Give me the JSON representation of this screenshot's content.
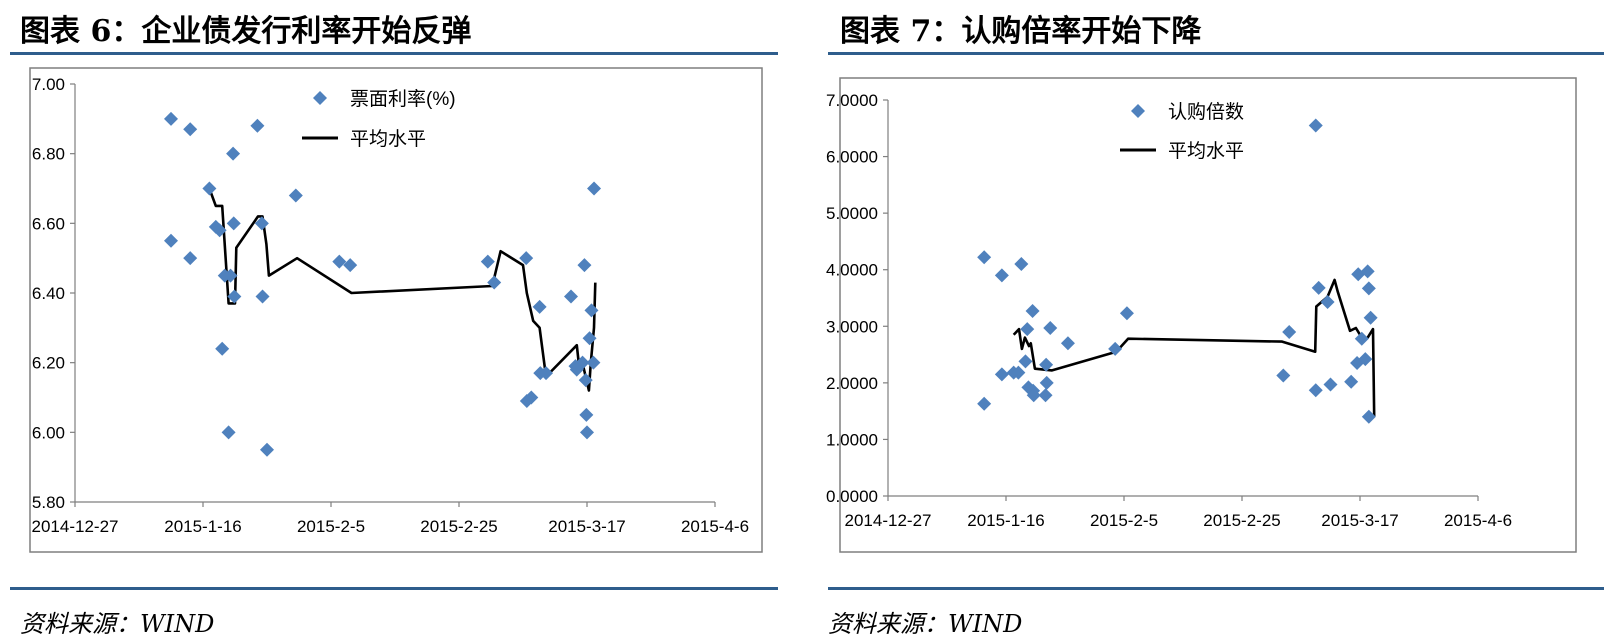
{
  "charts": [
    {
      "figure_label": "图表 6：",
      "figure_title": "企业债发行利率开始反弹",
      "source": "资料来源：WIND",
      "chart_data": {
        "type": "scatter",
        "xlabel": "",
        "ylabel": "",
        "x_ticks": [
          "2014-12-27",
          "2015-1-16",
          "2015-2-5",
          "2015-2-25",
          "2015-3-17",
          "2015-4-6"
        ],
        "x_tick_days": [
          0,
          20,
          40,
          60,
          80,
          100
        ],
        "y_ticks": [
          "5.80",
          "6.00",
          "6.20",
          "6.40",
          "6.60",
          "6.80",
          "7.00"
        ],
        "ylim": [
          5.8,
          7.0
        ],
        "legend_position": "top-center",
        "grid": false,
        "series": [
          {
            "name": "票面利率(%)",
            "kind": "scatter",
            "color": "#4f81bd",
            "points": [
              [
                15,
                6.9
              ],
              [
                15,
                6.55
              ],
              [
                18,
                6.87
              ],
              [
                18,
                6.5
              ],
              [
                21,
                6.7
              ],
              [
                22,
                6.59
              ],
              [
                22.6,
                6.58
              ],
              [
                23,
                6.24
              ],
              [
                23.4,
                6.45
              ],
              [
                24,
                6.0
              ],
              [
                24.3,
                6.45
              ],
              [
                24.7,
                6.8
              ],
              [
                24.8,
                6.6
              ],
              [
                24.9,
                6.39
              ],
              [
                28.5,
                6.88
              ],
              [
                29.2,
                6.6
              ],
              [
                29.3,
                6.39
              ],
              [
                30,
                5.95
              ],
              [
                34.5,
                6.68
              ],
              [
                41.3,
                6.49
              ],
              [
                43,
                6.48
              ],
              [
                64.5,
                6.49
              ],
              [
                65.5,
                6.43
              ],
              [
                70.5,
                6.5
              ],
              [
                70.6,
                6.09
              ],
              [
                71.3,
                6.1
              ],
              [
                72.6,
                6.36
              ],
              [
                72.7,
                6.17
              ],
              [
                73.6,
                6.17
              ],
              [
                77.5,
                6.39
              ],
              [
                78.2,
                6.19
              ],
              [
                78.4,
                6.18
              ],
              [
                79.3,
                6.2
              ],
              [
                79.6,
                6.48
              ],
              [
                79.8,
                6.15
              ],
              [
                79.9,
                6.05
              ],
              [
                80,
                6.0
              ],
              [
                80.4,
                6.27
              ],
              [
                80.7,
                6.35
              ],
              [
                81,
                6.2
              ],
              [
                81.1,
                6.7
              ]
            ]
          },
          {
            "name": "平均水平",
            "kind": "line",
            "color": "#000000",
            "points": [
              [
                21,
                6.7
              ],
              [
                22,
                6.65
              ],
              [
                23,
                6.65
              ],
              [
                24,
                6.37
              ],
              [
                25,
                6.37
              ],
              [
                25.2,
                6.53
              ],
              [
                28.6,
                6.62
              ],
              [
                29.3,
                6.62
              ],
              [
                29.9,
                6.54
              ],
              [
                30.3,
                6.45
              ],
              [
                34.7,
                6.5
              ],
              [
                43.2,
                6.4
              ],
              [
                65.2,
                6.42
              ],
              [
                66.5,
                6.52
              ],
              [
                70,
                6.48
              ],
              [
                70.6,
                6.4
              ],
              [
                71.6,
                6.32
              ],
              [
                72.6,
                6.3
              ],
              [
                73.6,
                6.16
              ],
              [
                78.4,
                6.25
              ],
              [
                78.7,
                6.2
              ],
              [
                79.4,
                6.19
              ],
              [
                80.3,
                6.12
              ],
              [
                80.6,
                6.2
              ],
              [
                81.1,
                6.3
              ],
              [
                81.3,
                6.43
              ]
            ]
          }
        ]
      }
    },
    {
      "figure_label": "图表 7：",
      "figure_title": "认购倍率开始下降",
      "source": "资料来源：WIND",
      "chart_data": {
        "type": "scatter",
        "xlabel": "",
        "ylabel": "",
        "x_ticks": [
          "2014-12-27",
          "2015-1-16",
          "2015-2-5",
          "2015-2-25",
          "2015-3-17",
          "2015-4-6"
        ],
        "x_tick_days": [
          0,
          20,
          40,
          60,
          80,
          100
        ],
        "y_ticks": [
          "0.0000",
          "1.0000",
          "2.0000",
          "3.0000",
          "4.0000",
          "5.0000",
          "6.0000",
          "7.0000"
        ],
        "ylim": [
          0,
          7
        ],
        "legend_position": "top-center",
        "grid": false,
        "series": [
          {
            "name": "认购倍数",
            "kind": "scatter",
            "color": "#4f81bd",
            "points": [
              [
                16.3,
                4.22
              ],
              [
                16.3,
                1.63
              ],
              [
                19.3,
                3.9
              ],
              [
                19.3,
                2.15
              ],
              [
                21.3,
                2.18
              ],
              [
                22.1,
                2.18
              ],
              [
                22.6,
                4.1
              ],
              [
                23.3,
                2.38
              ],
              [
                23.6,
                2.95
              ],
              [
                23.8,
                1.92
              ],
              [
                24.5,
                3.27
              ],
              [
                24.6,
                1.86
              ],
              [
                24.7,
                1.78
              ],
              [
                26.7,
                1.78
              ],
              [
                26.8,
                2.32
              ],
              [
                26.9,
                2.0
              ],
              [
                27.5,
                2.97
              ],
              [
                30.5,
                2.7
              ],
              [
                38.5,
                2.6
              ],
              [
                40.5,
                3.23
              ],
              [
                67,
                2.13
              ],
              [
                68,
                2.9
              ],
              [
                72.5,
                6.55
              ],
              [
                72.5,
                1.87
              ],
              [
                73,
                3.68
              ],
              [
                74.5,
                3.43
              ],
              [
                75,
                1.97
              ],
              [
                78.5,
                2.02
              ],
              [
                79.5,
                2.35
              ],
              [
                79.7,
                3.92
              ],
              [
                80.3,
                2.78
              ],
              [
                80.9,
                2.42
              ],
              [
                81.3,
                3.97
              ],
              [
                81.5,
                3.67
              ],
              [
                81.5,
                1.4
              ],
              [
                81.8,
                3.15
              ]
            ]
          },
          {
            "name": "平均水平",
            "kind": "line",
            "color": "#000000",
            "points": [
              [
                21.3,
                2.85
              ],
              [
                22.2,
                2.95
              ],
              [
                22.7,
                2.6
              ],
              [
                23.2,
                2.8
              ],
              [
                23.9,
                2.65
              ],
              [
                24.2,
                2.7
              ],
              [
                24.9,
                2.25
              ],
              [
                27.8,
                2.22
              ],
              [
                38.7,
                2.55
              ],
              [
                40.7,
                2.78
              ],
              [
                66.8,
                2.73
              ],
              [
                72.4,
                2.55
              ],
              [
                72.6,
                3.35
              ],
              [
                74.5,
                3.52
              ],
              [
                75.7,
                3.82
              ],
              [
                76.2,
                3.62
              ],
              [
                78.3,
                2.92
              ],
              [
                79.3,
                2.97
              ],
              [
                80.4,
                2.78
              ],
              [
                81.3,
                2.8
              ],
              [
                82.2,
                2.95
              ],
              [
                82.4,
                1.4
              ]
            ]
          }
        ]
      }
    }
  ]
}
